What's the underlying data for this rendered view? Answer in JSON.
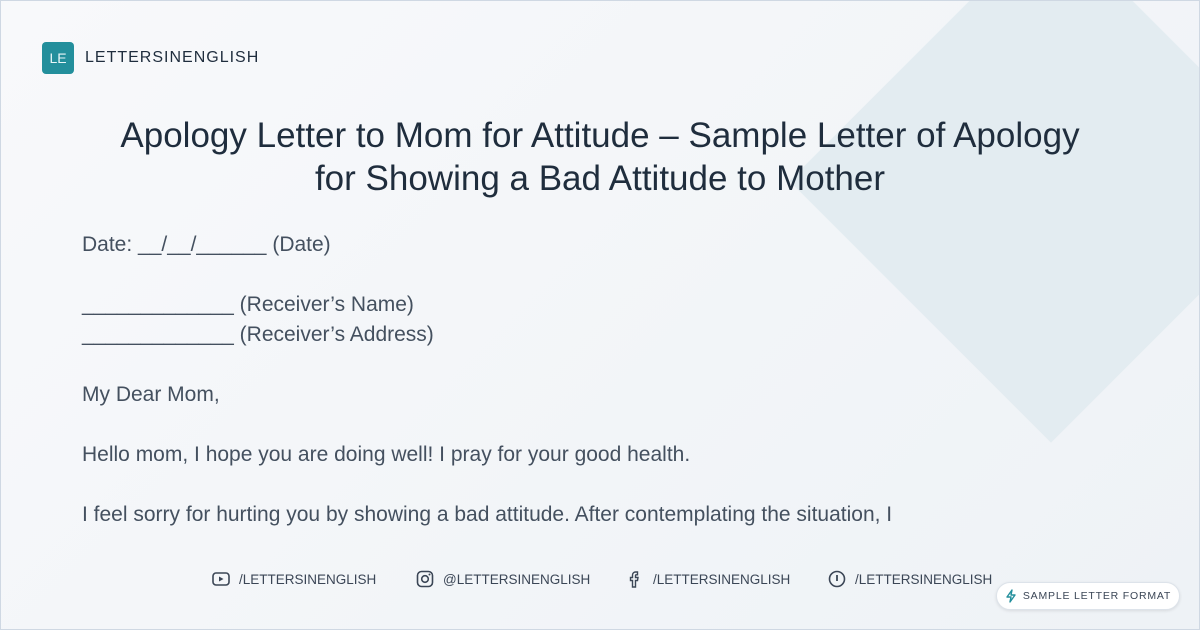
{
  "brand": {
    "logo": "LE",
    "name": "LETTERSINENGLISH",
    "accent": "#238f9c"
  },
  "title": "Apology Letter to Mom for Attitude – Sample Letter of Apology for Showing a Bad Attitude to Mother",
  "letter": {
    "date": "Date: __/__/______ (Date)",
    "receiver_name": "_____________ (Receiver’s Name)",
    "receiver_address": "_____________ (Receiver’s Address)",
    "salutation": "My Dear Mom,",
    "para1": "Hello mom, I hope you are doing well! I pray for your good health.",
    "para2": "I feel sorry for hurting you by showing a bad attitude. After contemplating the situation, I"
  },
  "social": [
    {
      "icon": "youtube-icon",
      "label": "/LETTERSINENGLISH"
    },
    {
      "icon": "instagram-icon",
      "label": "@LETTERSINENGLISH"
    },
    {
      "icon": "facebook-icon",
      "label": "/LETTERSINENGLISH"
    },
    {
      "icon": "pinterest-icon",
      "label": "/LETTERSINENGLISH"
    }
  ],
  "badge": {
    "icon": "lightning-icon",
    "label": "SAMPLE LETTER FORMAT"
  }
}
